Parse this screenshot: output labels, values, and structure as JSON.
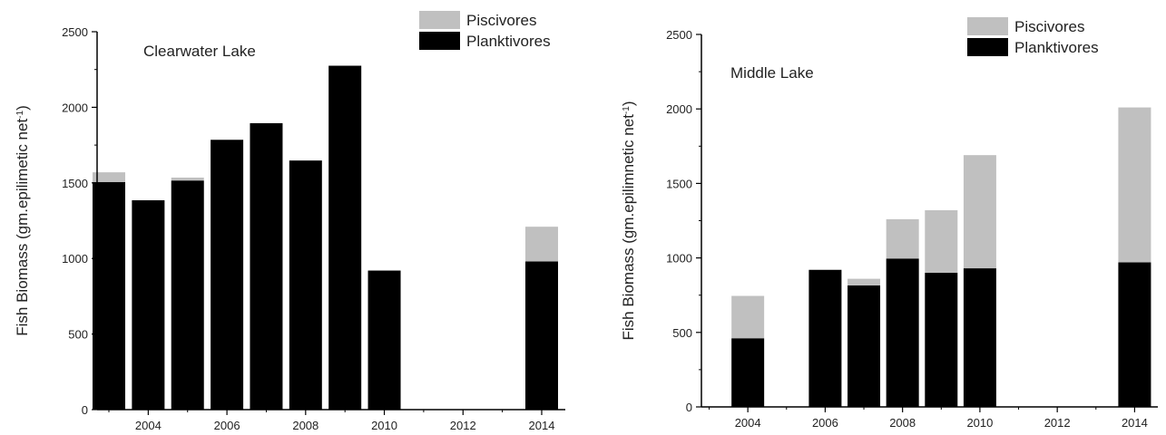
{
  "colors": {
    "planktivores": "#000000",
    "piscivores": "#c0c0c0",
    "axis": "#000000"
  },
  "chart_data": [
    {
      "type": "bar",
      "stacked": true,
      "title": "Clearwater Lake",
      "ylabel": "Fish Biomass (gm.epilimetic net",
      "ylabel_superscript": "-1",
      "ylabel_suffix": ")",
      "xlabel": "",
      "xlim": [
        2002.7,
        2014.6
      ],
      "ylim": [
        0,
        2500
      ],
      "xticks": [
        2004,
        2006,
        2008,
        2010,
        2012,
        2014
      ],
      "yticks": [
        0,
        500,
        1000,
        1500,
        2000,
        2500
      ],
      "legend": "top-right",
      "x": [
        2003,
        2004,
        2005,
        2006,
        2007,
        2008,
        2009,
        2010,
        2014
      ],
      "series": [
        {
          "name": "Planktivores",
          "values": [
            1505,
            1385,
            1515,
            1785,
            1895,
            1648,
            2275,
            920,
            980
          ]
        },
        {
          "name": "Piscivores",
          "values": [
            65,
            0,
            20,
            0,
            0,
            0,
            0,
            0,
            230
          ]
        }
      ]
    },
    {
      "type": "bar",
      "stacked": true,
      "title": "Middle Lake",
      "ylabel": "Fish Biomass (gm.epilimnetic net",
      "ylabel_superscript": "-1",
      "ylabel_suffix": ")",
      "xlabel": "",
      "xlim": [
        2002.8,
        2014.6
      ],
      "ylim": [
        0,
        2500
      ],
      "xticks": [
        2004,
        2006,
        2008,
        2010,
        2012,
        2014
      ],
      "yticks": [
        0,
        500,
        1000,
        1500,
        2000,
        2500
      ],
      "legend": "top-right",
      "x": [
        2004,
        2006,
        2007,
        2008,
        2009,
        2010,
        2014
      ],
      "series": [
        {
          "name": "Planktivores",
          "values": [
            460,
            920,
            815,
            995,
            900,
            930,
            970
          ]
        },
        {
          "name": "Piscivores",
          "values": [
            285,
            0,
            45,
            265,
            420,
            760,
            1040
          ]
        }
      ]
    }
  ]
}
